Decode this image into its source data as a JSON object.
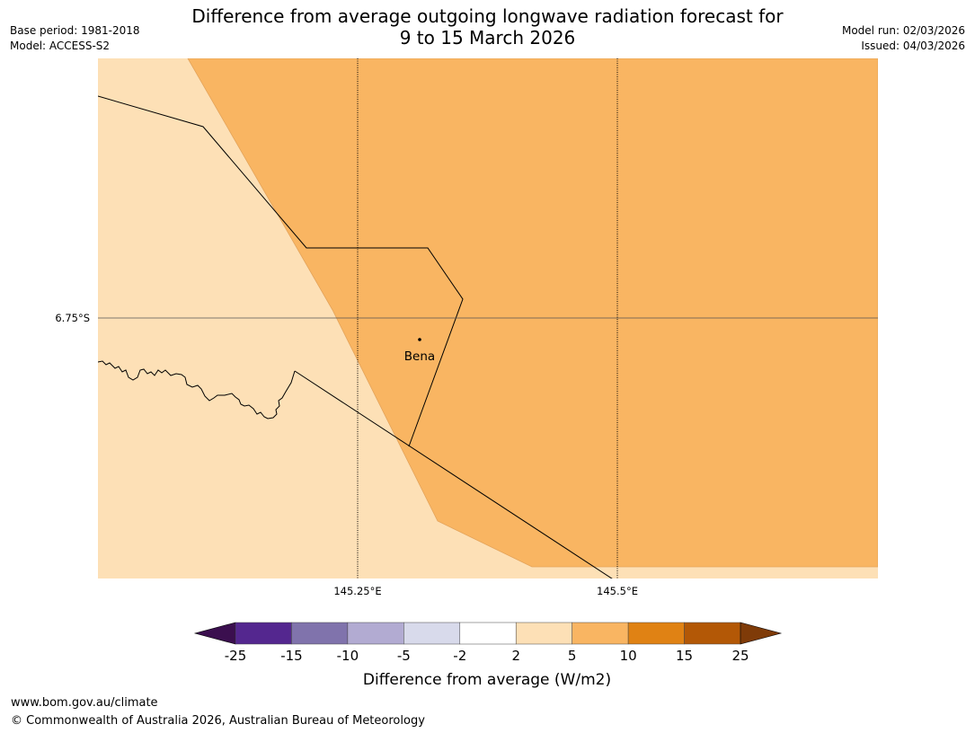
{
  "header": {
    "title_line1": "Difference from average outgoing longwave radiation forecast for",
    "title_line2": "9 to 15 March 2026",
    "base_period": "Base period: 1981-2018",
    "model": "Model: ACCESS-S2",
    "model_run": "Model run: 02/03/2026",
    "issued": "Issued: 04/03/2026"
  },
  "map": {
    "lat_label": "6.75°S",
    "lon_labels": [
      "145.25°E",
      "145.5°E"
    ],
    "place": "Bena"
  },
  "legend": {
    "ticks": [
      "-25",
      "-15",
      "-10",
      "-5",
      "-2",
      "2",
      "5",
      "10",
      "15",
      "25"
    ],
    "title": "Difference from average (W/m2)",
    "colors": [
      "#3b0f4f",
      "#54278f",
      "#8073ac",
      "#b2abd2",
      "#d8daeb",
      "#ffffff",
      "#fde0b6",
      "#f9b562",
      "#e08214",
      "#b35806",
      "#7f3b08"
    ]
  },
  "footer": {
    "url": "www.bom.gov.au/climate",
    "copyright": "© Commonwealth of Australia 2026, Australian Bureau of Meteorology"
  }
}
